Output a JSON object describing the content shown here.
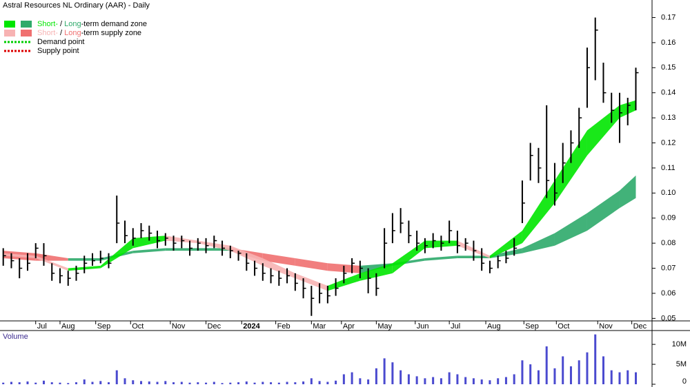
{
  "chart_data": {
    "type": "ohlc",
    "title": "Astral Resources NL Ordinary (AAR) - Daily",
    "legend": [
      {
        "parts": [
          "Short-",
          " / ",
          "Long",
          "-term demand zone"
        ],
        "colors": [
          "#00e600",
          "#2eaa6a"
        ]
      },
      {
        "parts": [
          "Short-",
          " / ",
          "Long",
          "-term supply zone"
        ],
        "colors": [
          "#f7b3b3",
          "#f07070"
        ]
      },
      {
        "parts": [
          "Demand point"
        ],
        "colors": [
          "#00cc00"
        ]
      },
      {
        "parts": [
          "Supply point"
        ],
        "colors": [
          "#dd0000"
        ]
      }
    ],
    "xticks": [
      {
        "value": 4,
        "label": "Jul"
      },
      {
        "value": 7,
        "label": "Aug"
      },
      {
        "value": 11.4,
        "label": "Sep"
      },
      {
        "value": 15.7,
        "label": "Oct"
      },
      {
        "value": 20.6,
        "label": "Nov"
      },
      {
        "value": 25,
        "label": "Dec"
      },
      {
        "value": 29.4,
        "label": "2024"
      },
      {
        "value": 33.6,
        "label": "Feb"
      },
      {
        "value": 38,
        "label": "Mar"
      },
      {
        "value": 41.7,
        "label": "Apr"
      },
      {
        "value": 46,
        "label": "May"
      },
      {
        "value": 50.8,
        "label": "Jun"
      },
      {
        "value": 55,
        "label": "Jul"
      },
      {
        "value": 59.5,
        "label": "Aug"
      },
      {
        "value": 64.2,
        "label": "Sep"
      },
      {
        "value": 68.2,
        "label": "Oct"
      },
      {
        "value": 73.3,
        "label": "Nov"
      },
      {
        "value": 77.5,
        "label": "Dec"
      }
    ],
    "xlim": [
      -0.4,
      80
    ],
    "ylim": [
      0.049,
      0.177
    ],
    "yticks": [
      0.05,
      0.06,
      0.07,
      0.08,
      0.09,
      {
        "value": 0.1,
        "label": "0.10"
      },
      0.11,
      0.12,
      0.13,
      0.14,
      0.15,
      0.16,
      0.17
    ],
    "high": [
      0.078,
      0.076,
      0.074,
      0.076,
      0.08,
      0.08,
      0.072,
      0.07,
      0.069,
      0.071,
      0.075,
      0.076,
      0.077,
      0.076,
      0.099,
      0.089,
      0.086,
      0.088,
      0.087,
      0.085,
      0.084,
      0.083,
      0.083,
      0.081,
      0.082,
      0.082,
      0.083,
      0.081,
      0.079,
      0.077,
      0.076,
      0.073,
      0.072,
      0.07,
      0.069,
      0.07,
      0.068,
      0.066,
      0.063,
      0.064,
      0.063,
      0.066,
      0.071,
      0.074,
      0.073,
      0.07,
      0.068,
      0.086,
      0.092,
      0.094,
      0.089,
      0.085,
      0.082,
      0.084,
      0.083,
      0.089,
      0.085,
      0.082,
      0.081,
      0.078,
      0.073,
      0.075,
      0.077,
      0.082,
      0.105,
      0.12,
      0.118,
      0.135,
      0.112,
      0.12,
      0.125,
      0.134,
      0.158,
      0.17,
      0.152,
      0.14,
      0.14,
      0.138,
      0.15
    ],
    "low": [
      0.071,
      0.07,
      0.066,
      0.069,
      0.074,
      0.071,
      0.065,
      0.064,
      0.063,
      0.065,
      0.068,
      0.071,
      0.072,
      0.07,
      0.08,
      0.08,
      0.079,
      0.082,
      0.081,
      0.078,
      0.079,
      0.077,
      0.078,
      0.075,
      0.077,
      0.076,
      0.078,
      0.075,
      0.074,
      0.073,
      0.069,
      0.067,
      0.065,
      0.064,
      0.063,
      0.064,
      0.061,
      0.058,
      0.051,
      0.056,
      0.056,
      0.059,
      0.064,
      0.068,
      0.066,
      0.06,
      0.059,
      0.07,
      0.08,
      0.084,
      0.08,
      0.077,
      0.076,
      0.078,
      0.077,
      0.08,
      0.076,
      0.077,
      0.073,
      0.069,
      0.068,
      0.07,
      0.072,
      0.075,
      0.088,
      0.105,
      0.104,
      0.098,
      0.095,
      0.104,
      0.112,
      0.118,
      0.134,
      0.145,
      0.136,
      0.128,
      0.12,
      0.127,
      0.133
    ],
    "close": [
      0.075,
      0.073,
      0.07,
      0.072,
      0.078,
      0.075,
      0.068,
      0.067,
      0.066,
      0.068,
      0.072,
      0.073,
      0.074,
      0.072,
      0.088,
      0.083,
      0.082,
      0.085,
      0.084,
      0.081,
      0.082,
      0.08,
      0.081,
      0.078,
      0.08,
      0.079,
      0.081,
      0.078,
      0.077,
      0.076,
      0.072,
      0.07,
      0.068,
      0.067,
      0.066,
      0.067,
      0.064,
      0.062,
      0.058,
      0.06,
      0.059,
      0.062,
      0.068,
      0.072,
      0.07,
      0.066,
      0.062,
      0.08,
      0.085,
      0.088,
      0.083,
      0.08,
      0.079,
      0.081,
      0.08,
      0.085,
      0.079,
      0.08,
      0.077,
      0.072,
      0.07,
      0.073,
      0.074,
      0.078,
      0.096,
      0.115,
      0.11,
      0.105,
      0.1,
      0.112,
      0.12,
      0.13,
      0.15,
      0.165,
      0.14,
      0.133,
      0.132,
      0.135,
      0.148
    ],
    "zones": {
      "x": [
        0,
        4,
        8,
        12,
        16,
        20,
        24,
        28,
        32,
        36,
        40,
        44,
        48,
        52,
        56,
        60,
        64,
        68,
        72,
        76,
        78
      ],
      "long_upper": [
        0.077,
        0.076,
        0.074,
        0.074,
        0.077,
        0.078,
        0.078,
        0.078,
        0.076,
        0.074,
        0.072,
        0.071,
        0.072,
        0.074,
        0.075,
        0.075,
        0.078,
        0.084,
        0.092,
        0.101,
        0.107
      ],
      "long_lower": [
        0.074,
        0.073,
        0.073,
        0.073,
        0.076,
        0.077,
        0.077,
        0.077,
        0.073,
        0.071,
        0.069,
        0.068,
        0.071,
        0.073,
        0.074,
        0.074,
        0.076,
        0.079,
        0.085,
        0.094,
        0.098
      ],
      "short_upper": [
        0.076,
        0.075,
        0.07,
        0.071,
        0.082,
        0.083,
        0.081,
        0.079,
        0.074,
        0.068,
        0.063,
        0.068,
        0.072,
        0.081,
        0.081,
        0.075,
        0.085,
        0.105,
        0.125,
        0.135,
        0.137
      ],
      "short_lower": [
        0.075,
        0.074,
        0.069,
        0.07,
        0.078,
        0.081,
        0.08,
        0.077,
        0.071,
        0.066,
        0.061,
        0.065,
        0.068,
        0.078,
        0.079,
        0.074,
        0.08,
        0.096,
        0.115,
        0.13,
        0.133
      ]
    },
    "volume": {
      "label": "Volume",
      "color": "#4a4acf",
      "ylim": [
        0,
        13300000
      ],
      "yticks": [
        0,
        {
          "value": 5000000,
          "label": "5M"
        },
        {
          "value": 10000000,
          "label": "10M"
        }
      ],
      "values": [
        400000,
        600000,
        500000,
        700000,
        400000,
        900000,
        500000,
        400000,
        300000,
        500000,
        1200000,
        600000,
        800000,
        500000,
        3500000,
        1500000,
        1000000,
        800000,
        700000,
        600000,
        800000,
        500000,
        600000,
        400000,
        500000,
        400000,
        600000,
        300000,
        400000,
        500000,
        700000,
        400000,
        600000,
        500000,
        400000,
        600000,
        500000,
        700000,
        1500000,
        800000,
        600000,
        900000,
        2500000,
        3000000,
        1500000,
        1200000,
        4000000,
        6500000,
        5500000,
        3500000,
        2500000,
        2000000,
        1500000,
        1800000,
        1500000,
        3000000,
        2500000,
        1800000,
        1500000,
        1200000,
        1000000,
        1500000,
        1800000,
        2500000,
        6000000,
        5000000,
        3500000,
        9500000,
        4000000,
        7000000,
        4500000,
        6000000,
        8000000,
        12500000,
        7000000,
        3500000,
        3000000,
        3500000,
        3000000
      ]
    }
  }
}
